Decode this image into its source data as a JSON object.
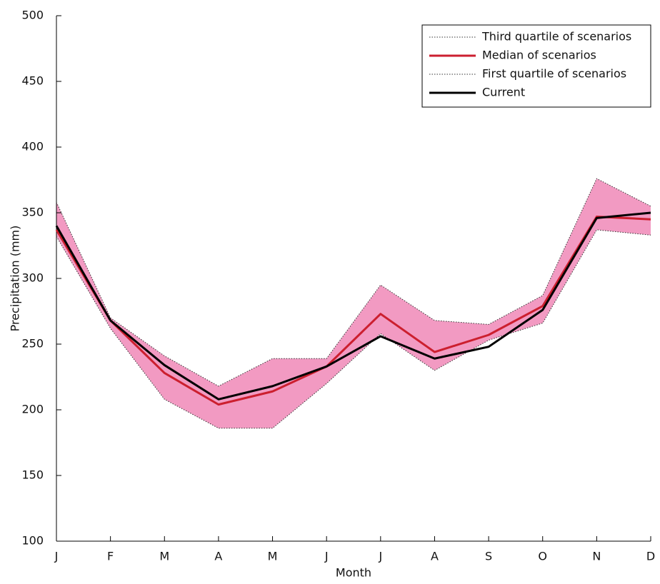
{
  "chart_data": {
    "type": "line",
    "x_label": "Month",
    "y_label": "Precipitation (mm)",
    "categories": [
      "J",
      "F",
      "M",
      "A",
      "M",
      "J",
      "J",
      "A",
      "S",
      "O",
      "N",
      "D"
    ],
    "series": [
      {
        "name": "Third quartile of scenarios",
        "color": "#333333",
        "style": "dotted",
        "values": [
          358,
          270,
          241,
          218,
          239,
          239,
          295,
          268,
          265,
          287,
          376,
          355
        ]
      },
      {
        "name": "Median of scenarios",
        "color": "#cc1f2f",
        "style": "solid",
        "values": [
          337,
          268,
          228,
          204,
          214,
          233,
          273,
          244,
          257,
          279,
          347,
          345
        ]
      },
      {
        "name": "First quartile of  scenarios",
        "color": "#333333",
        "style": "dotted",
        "values": [
          332,
          262,
          208,
          186,
          186,
          220,
          258,
          230,
          253,
          266,
          337,
          333
        ]
      },
      {
        "name": "Current",
        "color": "#000000",
        "style": "solid",
        "values": [
          340,
          268,
          234,
          208,
          218,
          233,
          256,
          239,
          248,
          276,
          346,
          350
        ]
      }
    ],
    "band_color": "#f29ac2",
    "ylim": [
      100,
      500
    ],
    "yticks": [
      100,
      150,
      200,
      250,
      300,
      350,
      400,
      450,
      500
    ],
    "legend": "top-right",
    "grid": false
  }
}
